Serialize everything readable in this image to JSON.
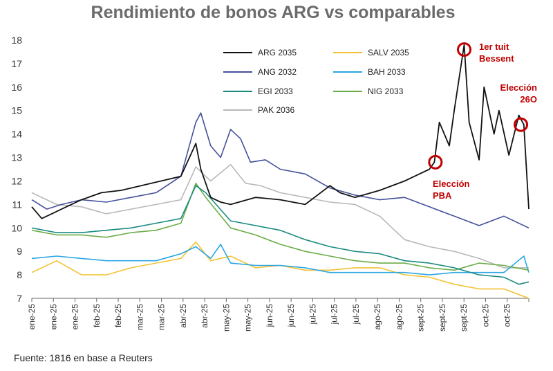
{
  "title": "Rendimiento de bonos ARG vs comparables",
  "source": "Fuente: 1816 en base a Reuters",
  "colors": {
    "ARG 2035": "#111111",
    "ANG 2032": "#44509a",
    "EGI 2033": "#1a8a7f",
    "PAK 2036": "#b8b8b8",
    "SALV 2035": "#f2c232",
    "BAH 2033": "#2ba6e3",
    "NIG 2033": "#6aac47",
    "annotation": "#c00000"
  },
  "chart_data": {
    "type": "line",
    "title": "Rendimiento de bonos ARG vs comparables",
    "xlabel": "",
    "ylabel": "",
    "ylim": [
      7,
      18
    ],
    "yticks": [
      7,
      8,
      9,
      10,
      11,
      12,
      13,
      14,
      15,
      16,
      17,
      18
    ],
    "xlim": [
      0,
      1
    ],
    "xtick_labels": [
      "ene-25",
      "ene-25",
      "ene-25",
      "feb-25",
      "feb-25",
      "mar-25",
      "mar-25",
      "abr-25",
      "abr-25",
      "may-25",
      "may-25",
      "jun-25",
      "jun-25",
      "jul-25",
      "jul-25",
      "jul-25",
      "ago-25",
      "ago-25",
      "sept-25",
      "sept-25",
      "sept-25",
      "oct-25",
      "oct-25"
    ],
    "grid": false,
    "legend_position": "top",
    "series": [
      {
        "name": "ARG 2035",
        "x": [
          0,
          0.02,
          0.04,
          0.06,
          0.1,
          0.14,
          0.18,
          0.22,
          0.26,
          0.3,
          0.33,
          0.34,
          0.36,
          0.38,
          0.4,
          0.45,
          0.5,
          0.55,
          0.6,
          0.62,
          0.65,
          0.7,
          0.75,
          0.8,
          0.81,
          0.82,
          0.84,
          0.85,
          0.87,
          0.88,
          0.9,
          0.91,
          0.93,
          0.94,
          0.96,
          0.98,
          0.99,
          1.0
        ],
        "y": [
          10.9,
          10.4,
          10.6,
          10.8,
          11.2,
          11.5,
          11.6,
          11.8,
          12.0,
          12.2,
          13.6,
          12.5,
          11.3,
          11.1,
          11.0,
          11.3,
          11.2,
          11.0,
          11.8,
          11.5,
          11.3,
          11.6,
          12.0,
          12.5,
          12.8,
          14.5,
          13.5,
          15.0,
          17.8,
          14.5,
          12.9,
          16.0,
          14.0,
          15.0,
          13.1,
          14.8,
          14.4,
          10.8
        ]
      },
      {
        "name": "ANG 2032",
        "x": [
          0,
          0.03,
          0.06,
          0.1,
          0.15,
          0.2,
          0.25,
          0.3,
          0.33,
          0.34,
          0.36,
          0.38,
          0.4,
          0.42,
          0.44,
          0.47,
          0.5,
          0.55,
          0.6,
          0.65,
          0.7,
          0.75,
          0.8,
          0.85,
          0.9,
          0.95,
          1.0
        ],
        "y": [
          11.2,
          10.8,
          11.0,
          11.2,
          11.1,
          11.3,
          11.5,
          12.2,
          14.5,
          14.9,
          13.5,
          13.0,
          14.2,
          13.8,
          12.8,
          12.9,
          12.5,
          12.3,
          11.7,
          11.4,
          11.2,
          11.3,
          10.9,
          10.5,
          10.1,
          10.5,
          10.0
        ]
      },
      {
        "name": "EGI 2033",
        "x": [
          0,
          0.05,
          0.1,
          0.15,
          0.2,
          0.25,
          0.3,
          0.33,
          0.35,
          0.4,
          0.45,
          0.5,
          0.55,
          0.6,
          0.65,
          0.7,
          0.75,
          0.8,
          0.85,
          0.9,
          0.95,
          0.98,
          1.0
        ],
        "y": [
          10.0,
          9.8,
          9.8,
          9.9,
          10.0,
          10.2,
          10.4,
          11.8,
          11.5,
          10.3,
          10.1,
          9.9,
          9.5,
          9.2,
          9.0,
          8.9,
          8.6,
          8.5,
          8.3,
          8.0,
          7.9,
          7.6,
          7.7
        ]
      },
      {
        "name": "PAK 2036",
        "x": [
          0,
          0.05,
          0.1,
          0.15,
          0.2,
          0.25,
          0.3,
          0.33,
          0.36,
          0.4,
          0.43,
          0.46,
          0.5,
          0.55,
          0.6,
          0.65,
          0.7,
          0.75,
          0.8,
          0.85,
          0.9,
          0.95,
          1.0
        ],
        "y": [
          11.5,
          11.0,
          10.9,
          10.6,
          10.8,
          11.0,
          11.2,
          12.6,
          12.0,
          12.7,
          11.9,
          11.8,
          11.5,
          11.3,
          11.1,
          11.0,
          10.5,
          9.5,
          9.2,
          9.0,
          8.7,
          8.3,
          8.3
        ]
      },
      {
        "name": "SALV 2035",
        "x": [
          0,
          0.05,
          0.1,
          0.15,
          0.2,
          0.25,
          0.3,
          0.33,
          0.36,
          0.4,
          0.45,
          0.5,
          0.55,
          0.6,
          0.65,
          0.7,
          0.75,
          0.8,
          0.85,
          0.9,
          0.95,
          1.0
        ],
        "y": [
          8.1,
          8.6,
          8.0,
          8.0,
          8.3,
          8.5,
          8.7,
          9.4,
          8.6,
          8.8,
          8.3,
          8.4,
          8.2,
          8.2,
          8.3,
          8.3,
          8.0,
          7.9,
          7.6,
          7.4,
          7.4,
          7.0
        ]
      },
      {
        "name": "BAH 2033",
        "x": [
          0,
          0.05,
          0.1,
          0.15,
          0.2,
          0.25,
          0.3,
          0.33,
          0.36,
          0.38,
          0.4,
          0.45,
          0.5,
          0.55,
          0.6,
          0.65,
          0.7,
          0.75,
          0.8,
          0.85,
          0.9,
          0.95,
          0.99,
          1.0
        ],
        "y": [
          8.7,
          8.8,
          8.7,
          8.6,
          8.6,
          8.6,
          8.9,
          9.2,
          8.7,
          9.3,
          8.5,
          8.4,
          8.4,
          8.3,
          8.1,
          8.1,
          8.1,
          8.1,
          8.0,
          8.1,
          8.1,
          8.1,
          8.8,
          8.1
        ]
      },
      {
        "name": "NIG 2033",
        "x": [
          0,
          0.05,
          0.1,
          0.15,
          0.2,
          0.25,
          0.3,
          0.33,
          0.35,
          0.4,
          0.45,
          0.5,
          0.55,
          0.6,
          0.65,
          0.7,
          0.75,
          0.8,
          0.85,
          0.9,
          0.95,
          1.0
        ],
        "y": [
          9.9,
          9.7,
          9.7,
          9.6,
          9.8,
          9.9,
          10.2,
          11.9,
          11.3,
          10.0,
          9.7,
          9.3,
          9.0,
          8.8,
          8.6,
          8.5,
          8.5,
          8.3,
          8.2,
          8.5,
          8.4,
          8.2
        ]
      }
    ],
    "annotations": [
      {
        "text": [
          "Elección",
          "PBA"
        ],
        "x": 0.812,
        "y": 12.8
      },
      {
        "text": [
          "1er tuit",
          "Bessent"
        ],
        "x": 0.87,
        "y": 17.6
      },
      {
        "text": [
          "Elección",
          "26O"
        ],
        "x": 0.984,
        "y": 14.4
      }
    ]
  }
}
